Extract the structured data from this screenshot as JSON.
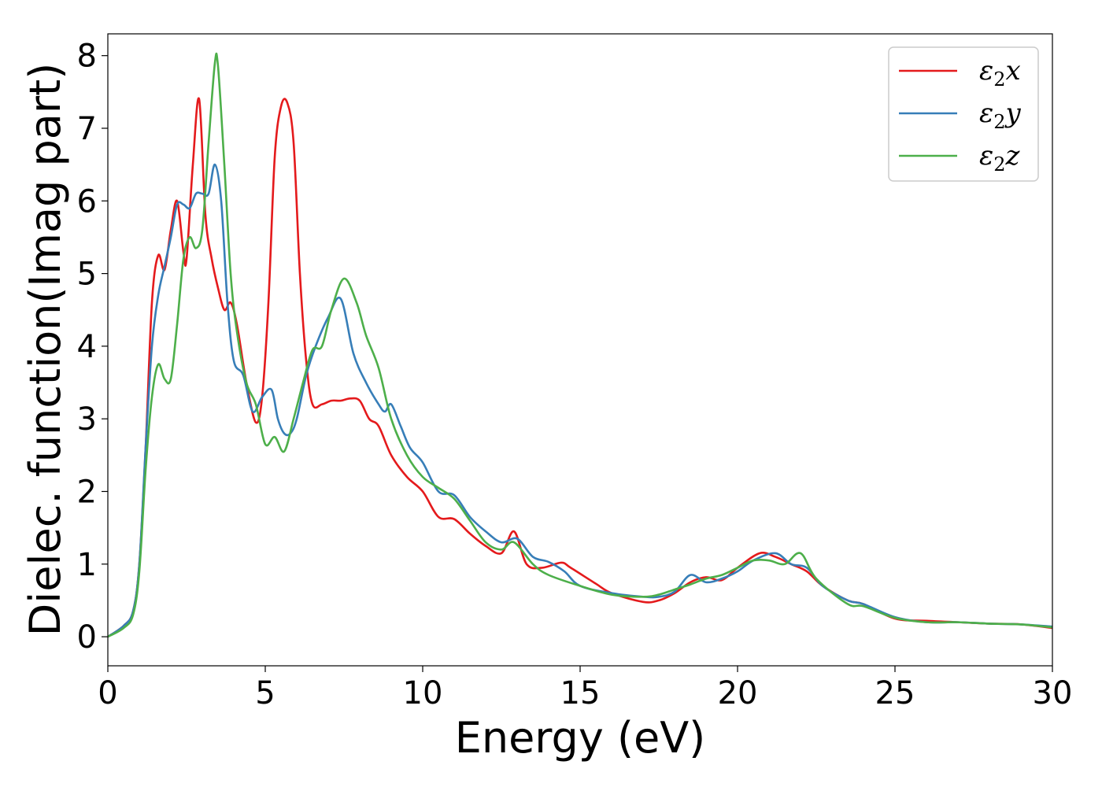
{
  "chart_data": {
    "type": "line",
    "xlabel": "Energy (eV)",
    "ylabel": "Dielec. function(Imag part)",
    "xlim": [
      0,
      30
    ],
    "ylim": [
      -0.4,
      8.3
    ],
    "xticks": [
      0,
      5,
      10,
      15,
      20,
      25,
      30
    ],
    "yticks": [
      0,
      1,
      2,
      3,
      4,
      5,
      6,
      7,
      8
    ],
    "grid": false,
    "legend_position": "top-right",
    "series": [
      {
        "name": "ε2x",
        "legend_base": "ε",
        "legend_sub": "2",
        "legend_suffix": "x",
        "color": "#e41a1c",
        "x": [
          0,
          0.5,
          0.8,
          1.0,
          1.2,
          1.4,
          1.6,
          1.8,
          2.0,
          2.2,
          2.4,
          2.5,
          2.7,
          2.9,
          3.1,
          3.3,
          3.5,
          3.7,
          3.9,
          4.1,
          4.4,
          4.7,
          4.9,
          5.1,
          5.3,
          5.5,
          5.7,
          5.9,
          6.1,
          6.3,
          6.5,
          6.8,
          7.1,
          7.4,
          7.7,
          8.0,
          8.3,
          8.6,
          9.0,
          9.5,
          10.0,
          10.5,
          11.0,
          11.5,
          12.0,
          12.5,
          12.9,
          13.3,
          13.8,
          14.4,
          14.7,
          15.5,
          16.0,
          17.0,
          17.5,
          18.0,
          18.5,
          19.0,
          19.5,
          20.0,
          20.7,
          21.2,
          21.7,
          22.2,
          22.7,
          23.5,
          24.0,
          25.0,
          26.0,
          27.0,
          28.0,
          29.0,
          30.0
        ],
        "y": [
          0.0,
          0.15,
          0.35,
          1.0,
          2.6,
          4.6,
          5.25,
          5.05,
          5.6,
          6.0,
          5.3,
          5.2,
          6.5,
          7.4,
          5.8,
          5.2,
          4.8,
          4.5,
          4.6,
          4.3,
          3.5,
          2.95,
          3.3,
          4.6,
          6.6,
          7.3,
          7.35,
          6.8,
          5.0,
          3.8,
          3.2,
          3.2,
          3.25,
          3.25,
          3.28,
          3.25,
          3.0,
          2.9,
          2.5,
          2.2,
          2.0,
          1.65,
          1.62,
          1.42,
          1.25,
          1.15,
          1.45,
          1.0,
          0.95,
          1.02,
          0.95,
          0.73,
          0.6,
          0.48,
          0.5,
          0.6,
          0.75,
          0.82,
          0.78,
          0.95,
          1.15,
          1.1,
          1.0,
          0.9,
          0.7,
          0.5,
          0.45,
          0.25,
          0.22,
          0.2,
          0.18,
          0.17,
          0.12
        ]
      },
      {
        "name": "ε2y",
        "legend_base": "ε",
        "legend_sub": "2",
        "legend_suffix": "y",
        "color": "#377eb8",
        "x": [
          0,
          0.5,
          0.8,
          1.0,
          1.2,
          1.4,
          1.6,
          1.8,
          2.0,
          2.2,
          2.4,
          2.6,
          2.8,
          3.0,
          3.2,
          3.4,
          3.6,
          3.8,
          4.0,
          4.3,
          4.6,
          4.9,
          5.2,
          5.4,
          5.6,
          5.8,
          6.0,
          6.3,
          6.6,
          7.0,
          7.4,
          7.8,
          8.2,
          8.6,
          8.8,
          9.0,
          9.3,
          9.6,
          10.0,
          10.5,
          11.0,
          11.5,
          12.0,
          12.5,
          13.0,
          13.5,
          14.0,
          14.5,
          15.0,
          16.0,
          17.0,
          17.5,
          18.0,
          18.5,
          19.0,
          19.5,
          20.0,
          20.5,
          21.2,
          21.7,
          22.2,
          22.7,
          23.5,
          24.0,
          25.0,
          26.0,
          27.0,
          28.0,
          29.0,
          30.0
        ],
        "y": [
          0.0,
          0.15,
          0.35,
          1.0,
          2.6,
          4.0,
          4.7,
          5.1,
          5.5,
          5.95,
          5.95,
          5.9,
          6.1,
          6.1,
          6.1,
          6.5,
          6.0,
          4.6,
          3.8,
          3.6,
          3.1,
          3.3,
          3.4,
          3.0,
          2.8,
          2.8,
          3.0,
          3.6,
          4.0,
          4.4,
          4.65,
          3.9,
          3.5,
          3.2,
          3.1,
          3.2,
          2.9,
          2.6,
          2.4,
          2.0,
          1.95,
          1.65,
          1.45,
          1.3,
          1.35,
          1.1,
          1.03,
          0.9,
          0.7,
          0.6,
          0.55,
          0.55,
          0.62,
          0.85,
          0.75,
          0.8,
          0.9,
          1.05,
          1.15,
          1.0,
          0.95,
          0.7,
          0.5,
          0.45,
          0.27,
          0.2,
          0.2,
          0.18,
          0.17,
          0.14
        ]
      },
      {
        "name": "ε2z",
        "legend_base": "ε",
        "legend_sub": "2",
        "legend_suffix": "z",
        "color": "#4daf4a",
        "x": [
          0,
          0.5,
          0.8,
          1.0,
          1.2,
          1.4,
          1.6,
          1.8,
          2.0,
          2.2,
          2.4,
          2.6,
          2.8,
          3.0,
          3.2,
          3.4,
          3.5,
          3.7,
          3.9,
          4.1,
          4.4,
          4.7,
          5.0,
          5.3,
          5.6,
          5.9,
          6.2,
          6.5,
          6.8,
          7.1,
          7.5,
          7.9,
          8.2,
          8.6,
          9.0,
          9.5,
          10.0,
          10.5,
          11.0,
          11.5,
          12.0,
          12.5,
          12.9,
          13.5,
          14.0,
          15.0,
          16.0,
          17.0,
          17.5,
          18.0,
          18.5,
          19.0,
          19.5,
          20.0,
          20.5,
          21.0,
          21.5,
          22.0,
          22.5,
          23.5,
          24.0,
          25.0,
          26.0,
          27.0,
          28.0,
          29.0,
          30.0
        ],
        "y": [
          0.0,
          0.12,
          0.3,
          0.9,
          2.3,
          3.3,
          3.75,
          3.55,
          3.55,
          4.3,
          5.2,
          5.5,
          5.35,
          5.6,
          6.8,
          7.9,
          7.85,
          6.5,
          5.0,
          4.2,
          3.5,
          3.2,
          2.65,
          2.75,
          2.55,
          3.0,
          3.5,
          3.95,
          4.0,
          4.5,
          4.93,
          4.6,
          4.15,
          3.7,
          3.0,
          2.5,
          2.2,
          2.05,
          1.9,
          1.6,
          1.3,
          1.2,
          1.3,
          1.0,
          0.85,
          0.7,
          0.58,
          0.55,
          0.58,
          0.65,
          0.72,
          0.8,
          0.85,
          0.95,
          1.05,
          1.05,
          1.0,
          1.15,
          0.8,
          0.45,
          0.42,
          0.26,
          0.2,
          0.2,
          0.18,
          0.17,
          0.13
        ]
      }
    ]
  }
}
